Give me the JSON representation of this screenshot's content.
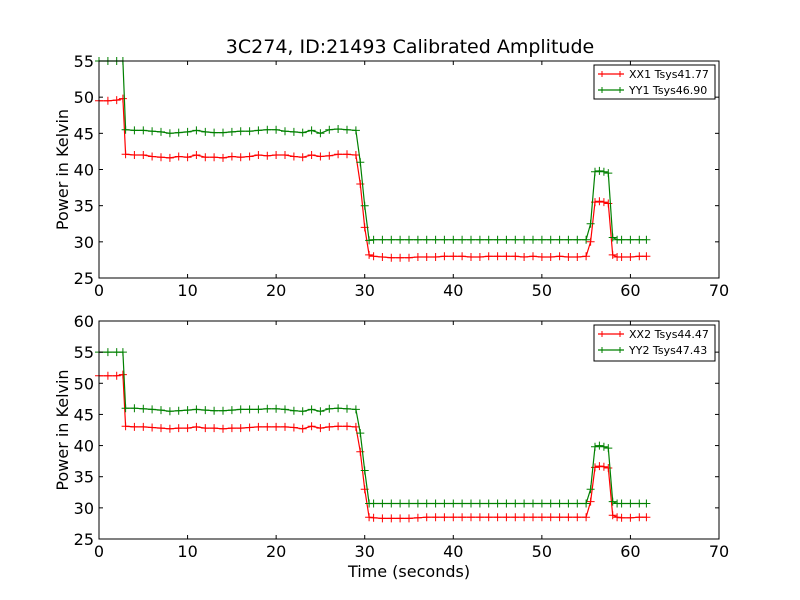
{
  "figure": {
    "title": "3C274, ID:21493 Calibrated Amplitude"
  },
  "chart_data": [
    {
      "type": "line",
      "title": "3C274, ID:21493 Calibrated Amplitude",
      "xlabel": "",
      "ylabel": "Power in Kelvin",
      "xlim": [
        0,
        70
      ],
      "ylim": [
        25,
        55
      ],
      "xticks": [
        "0",
        "10",
        "20",
        "30",
        "40",
        "50",
        "60",
        "70"
      ],
      "yticks": [
        "25",
        "30",
        "35",
        "40",
        "45",
        "50",
        "55"
      ],
      "grid": false,
      "legend_position": "top-right",
      "x": [
        0,
        1,
        2,
        2.7,
        3,
        4,
        5,
        6,
        7,
        8,
        9,
        10,
        11,
        12,
        13,
        14,
        15,
        16,
        17,
        18,
        19,
        20,
        21,
        22,
        23,
        24,
        25,
        26,
        27,
        28,
        29,
        29.5,
        30,
        30.5,
        31,
        32,
        33,
        34,
        35,
        36,
        37,
        38,
        39,
        40,
        41,
        42,
        43,
        44,
        45,
        46,
        47,
        48,
        49,
        50,
        51,
        52,
        53,
        54,
        55,
        55.5,
        56,
        56.5,
        57,
        57.5,
        58,
        58.5,
        59,
        60,
        61,
        61.8
      ],
      "series": [
        {
          "name": "XX1 Tsys41.77",
          "color": "#ff0000",
          "values": [
            49.5,
            49.5,
            49.6,
            49.8,
            42.1,
            42.0,
            42.0,
            41.8,
            41.7,
            41.6,
            41.8,
            41.7,
            42.0,
            41.7,
            41.7,
            41.6,
            41.8,
            41.7,
            41.8,
            42.0,
            41.9,
            42.0,
            42.0,
            41.8,
            41.7,
            42.0,
            41.8,
            41.9,
            42.1,
            42.1,
            42.0,
            38.0,
            32.0,
            28.2,
            28.0,
            27.9,
            27.8,
            27.8,
            27.8,
            27.9,
            27.9,
            27.9,
            28.0,
            28.0,
            28.0,
            27.9,
            27.9,
            28.0,
            28.0,
            28.0,
            28.0,
            27.9,
            28.0,
            27.9,
            27.9,
            28.0,
            27.9,
            27.9,
            28.0,
            30.0,
            35.5,
            35.6,
            35.5,
            35.3,
            28.2,
            27.9,
            27.9,
            27.9,
            28.0,
            28.0
          ]
        },
        {
          "name": "YY1 Tsys46.90",
          "color": "#008000",
          "values": [
            55.0,
            55.0,
            55.0,
            55.0,
            45.5,
            45.4,
            45.4,
            45.3,
            45.2,
            45.0,
            45.1,
            45.2,
            45.4,
            45.2,
            45.1,
            45.1,
            45.2,
            45.3,
            45.3,
            45.4,
            45.5,
            45.5,
            45.3,
            45.2,
            45.1,
            45.4,
            45.0,
            45.5,
            45.6,
            45.5,
            45.4,
            41.0,
            35.0,
            30.2,
            30.3,
            30.3,
            30.3,
            30.3,
            30.3,
            30.3,
            30.3,
            30.3,
            30.3,
            30.3,
            30.3,
            30.3,
            30.3,
            30.3,
            30.3,
            30.3,
            30.3,
            30.3,
            30.3,
            30.3,
            30.3,
            30.3,
            30.3,
            30.3,
            30.3,
            32.5,
            39.7,
            39.8,
            39.7,
            39.5,
            30.6,
            30.3,
            30.3,
            30.3,
            30.3,
            30.3
          ]
        }
      ]
    },
    {
      "type": "line",
      "title": "",
      "xlabel": "Time (seconds)",
      "ylabel": "Power in Kelvin",
      "xlim": [
        0,
        70
      ],
      "ylim": [
        25,
        60
      ],
      "xticks": [
        "0",
        "10",
        "20",
        "30",
        "40",
        "50",
        "60",
        "70"
      ],
      "yticks": [
        "25",
        "30",
        "35",
        "40",
        "45",
        "50",
        "55",
        "60"
      ],
      "grid": false,
      "legend_position": "top-right",
      "x": [
        0,
        1,
        2,
        2.7,
        3,
        4,
        5,
        6,
        7,
        8,
        9,
        10,
        11,
        12,
        13,
        14,
        15,
        16,
        17,
        18,
        19,
        20,
        21,
        22,
        23,
        24,
        25,
        26,
        27,
        28,
        29,
        29.5,
        30,
        30.5,
        31,
        32,
        33,
        34,
        35,
        36,
        37,
        38,
        39,
        40,
        41,
        42,
        43,
        44,
        45,
        46,
        47,
        48,
        49,
        50,
        51,
        52,
        53,
        54,
        55,
        55.5,
        56,
        56.5,
        57,
        57.5,
        58,
        58.5,
        59,
        60,
        61,
        61.8
      ],
      "series": [
        {
          "name": "XX2 Tsys44.47",
          "color": "#ff0000",
          "values": [
            51.2,
            51.2,
            51.2,
            51.4,
            43.1,
            43.0,
            43.0,
            42.9,
            42.8,
            42.7,
            42.8,
            42.8,
            43.0,
            42.8,
            42.8,
            42.7,
            42.8,
            42.8,
            42.9,
            43.0,
            43.0,
            43.0,
            43.0,
            42.9,
            42.7,
            43.1,
            42.8,
            43.0,
            43.1,
            43.1,
            43.0,
            39.0,
            33.0,
            28.5,
            28.4,
            28.3,
            28.3,
            28.3,
            28.3,
            28.4,
            28.5,
            28.5,
            28.5,
            28.5,
            28.5,
            28.5,
            28.5,
            28.5,
            28.5,
            28.5,
            28.5,
            28.5,
            28.5,
            28.5,
            28.5,
            28.5,
            28.5,
            28.5,
            28.5,
            31.0,
            36.5,
            36.7,
            36.6,
            36.4,
            28.8,
            28.5,
            28.4,
            28.4,
            28.5,
            28.5
          ]
        },
        {
          "name": "YY2 Tsys47.43",
          "color": "#008000",
          "values": [
            55.0,
            55.0,
            55.0,
            55.0,
            46.0,
            46.0,
            45.9,
            45.8,
            45.7,
            45.5,
            45.6,
            45.7,
            45.8,
            45.7,
            45.6,
            45.6,
            45.7,
            45.8,
            45.8,
            45.8,
            45.9,
            45.9,
            45.8,
            45.6,
            45.5,
            45.8,
            45.5,
            45.9,
            46.0,
            45.9,
            45.8,
            42.0,
            36.0,
            30.7,
            30.7,
            30.7,
            30.7,
            30.7,
            30.7,
            30.7,
            30.7,
            30.7,
            30.7,
            30.7,
            30.7,
            30.7,
            30.7,
            30.7,
            30.7,
            30.7,
            30.7,
            30.7,
            30.7,
            30.7,
            30.7,
            30.7,
            30.7,
            30.7,
            30.7,
            33.0,
            39.8,
            40.0,
            39.8,
            39.6,
            31.0,
            30.7,
            30.7,
            30.7,
            30.7,
            30.7
          ]
        }
      ]
    }
  ]
}
